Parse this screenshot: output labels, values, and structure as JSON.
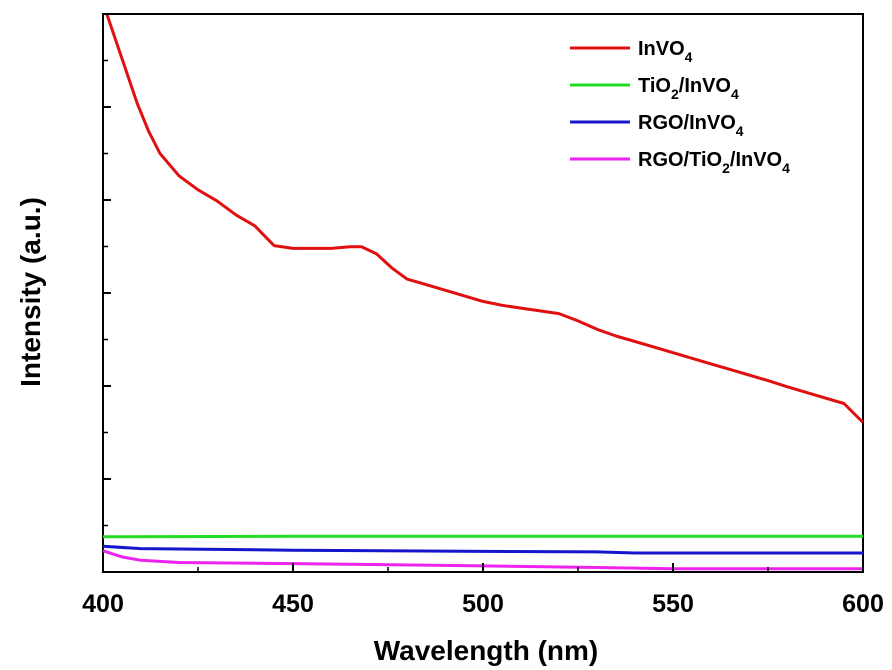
{
  "chart_data": {
    "type": "line",
    "xlabel": "Wavelength (nm)",
    "ylabel": "Intensity (a.u.)",
    "xlim": [
      400,
      600
    ],
    "ylim": [
      0,
      100
    ],
    "x_ticks": [
      400,
      450,
      500,
      550,
      600
    ],
    "x_tick_labels": [
      "400",
      "450",
      "500",
      "550",
      "600"
    ],
    "y_tick_labels_shown": false,
    "grid": false,
    "legend_position": "top-right",
    "series": [
      {
        "name": "InVO4",
        "legend_label": {
          "main": "InVO",
          "sub": "4",
          "tail": ""
        },
        "color": "#e01010",
        "points": [
          [
            400,
            102
          ],
          [
            403,
            96
          ],
          [
            406,
            90
          ],
          [
            409,
            84
          ],
          [
            412,
            79
          ],
          [
            415,
            75
          ],
          [
            420,
            71
          ],
          [
            425,
            68.5
          ],
          [
            430,
            66.5
          ],
          [
            435,
            64
          ],
          [
            440,
            62
          ],
          [
            445,
            58.5
          ],
          [
            450,
            58
          ],
          [
            455,
            58
          ],
          [
            460,
            58
          ],
          [
            465,
            58.3
          ],
          [
            468,
            58.3
          ],
          [
            472,
            57
          ],
          [
            476,
            54.5
          ],
          [
            480,
            52.5
          ],
          [
            485,
            51.5
          ],
          [
            490,
            50.5
          ],
          [
            495,
            49.5
          ],
          [
            500,
            48.5
          ],
          [
            505,
            47.8
          ],
          [
            510,
            47.3
          ],
          [
            515,
            46.8
          ],
          [
            520,
            46.3
          ],
          [
            525,
            45
          ],
          [
            530,
            43.5
          ],
          [
            535,
            42.3
          ],
          [
            540,
            41.3
          ],
          [
            545,
            40.3
          ],
          [
            550,
            39.3
          ],
          [
            555,
            38.3
          ],
          [
            560,
            37.3
          ],
          [
            565,
            36.3
          ],
          [
            570,
            35.3
          ],
          [
            575,
            34.3
          ],
          [
            580,
            33.2
          ],
          [
            585,
            32.2
          ],
          [
            590,
            31.2
          ],
          [
            595,
            30.2
          ],
          [
            600,
            26.8
          ]
        ]
      },
      {
        "name": "TiO2/InVO4",
        "legend_label": {
          "main": "TiO",
          "sub": "2",
          "tail": "/InVO",
          "sub2": "4"
        },
        "color": "#22dd22",
        "points": [
          [
            400,
            6.3
          ],
          [
            450,
            6.4
          ],
          [
            500,
            6.4
          ],
          [
            550,
            6.4
          ],
          [
            600,
            6.4
          ]
        ]
      },
      {
        "name": "RGO/InVO4",
        "legend_label": {
          "main": "RGO/InVO",
          "sub": "4",
          "tail": ""
        },
        "color": "#1515cc",
        "points": [
          [
            400,
            4.6
          ],
          [
            410,
            4.2
          ],
          [
            450,
            3.9
          ],
          [
            500,
            3.7
          ],
          [
            530,
            3.6
          ],
          [
            540,
            3.4
          ],
          [
            600,
            3.4
          ]
        ]
      },
      {
        "name": "RGO/TiO2/InVO4",
        "legend_label": {
          "main": "RGO/TiO",
          "sub": "2",
          "tail": "/InVO",
          "sub2": "4"
        },
        "color": "#ee22ee",
        "points": [
          [
            400,
            3.8
          ],
          [
            405,
            2.7
          ],
          [
            410,
            2.1
          ],
          [
            420,
            1.7
          ],
          [
            450,
            1.5
          ],
          [
            500,
            1.1
          ],
          [
            530,
            0.8
          ],
          [
            550,
            0.6
          ],
          [
            600,
            0.6
          ]
        ]
      }
    ]
  }
}
